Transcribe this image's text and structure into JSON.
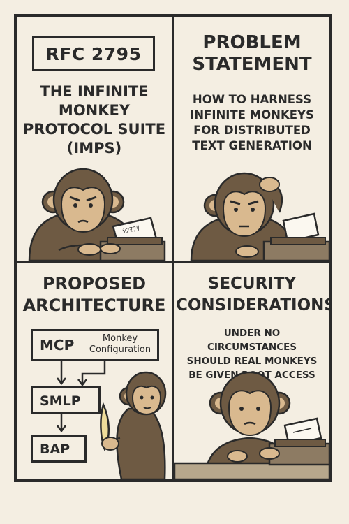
{
  "panels": {
    "rfc": {
      "badge": "RFC 2795",
      "title_lines": [
        "THE INFINITE",
        "MONKEY",
        "PROTOCOL SUITE",
        "(IMPS)"
      ],
      "paper_text": "ｼﾝﾏﾌﾘ"
    },
    "problem": {
      "title_lines": [
        "PROBLEM",
        "STATEMENT"
      ],
      "body_lines": [
        "HOW TO HARNESS",
        "INFINITE MONKEYS",
        "FOR DISTRIBUTED",
        "TEXT GENERATION"
      ]
    },
    "architecture": {
      "title_lines": [
        "PROPOSED",
        "ARCHITECTURE"
      ],
      "mcp": {
        "label": "MCP",
        "desc_lines": [
          "Monkey",
          "Configuration"
        ]
      },
      "smlp": {
        "label": "SMLP"
      },
      "bap": {
        "label": "BAP"
      }
    },
    "security": {
      "title_lines": [
        "SECURITY",
        "CONSIDERATIONS"
      ],
      "body_lines": [
        "UNDER NO CIRCUMSTANCES",
        "SHOULD REAL MONKEYS",
        "BE GIVEN ROOT ACCESS"
      ]
    }
  },
  "colors": {
    "background": "#f4eee2",
    "ink": "#2a2a2a",
    "monkey_fur": "#6e5a43",
    "monkey_face": "#d9b98f",
    "paper": "#fbf8f0",
    "typewriter": "#8d7b63"
  }
}
